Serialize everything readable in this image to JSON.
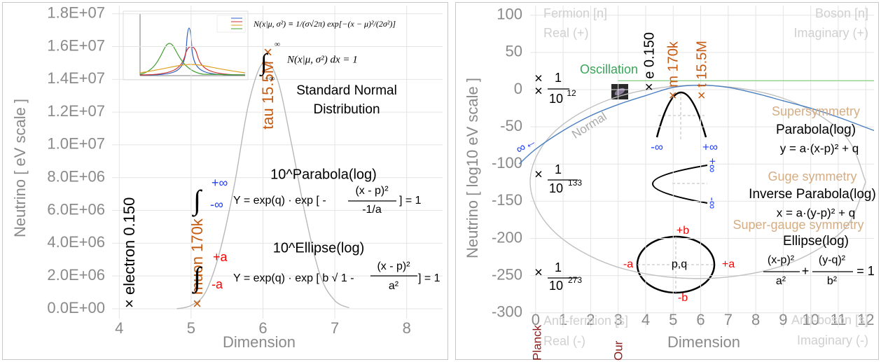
{
  "chart_data": [
    {
      "type": "line",
      "x_label": "Dimension",
      "y_label": "Neutrino [ eV scale ]",
      "xlim": [
        3.9,
        8.5
      ],
      "xticks": [
        4,
        5,
        6,
        7,
        8
      ],
      "ylim": [
        -600000,
        18500000
      ],
      "yticks": [
        {
          "value": 0,
          "label": "0.0E+00"
        },
        {
          "value": 2000000,
          "label": "2.0E+06"
        },
        {
          "value": 4000000,
          "label": "4.0E+06"
        },
        {
          "value": 6000000,
          "label": "6.0E+06"
        },
        {
          "value": 8000000,
          "label": "8.0E+06"
        },
        {
          "value": 10000000,
          "label": "1.0E+07"
        },
        {
          "value": 12000000,
          "label": "1.2E+07"
        },
        {
          "value": 14000000,
          "label": "1.4E+07"
        },
        {
          "value": 16000000,
          "label": "1.6E+07"
        },
        {
          "value": 18000000,
          "label": "1.8E+07"
        }
      ],
      "grid": true,
      "series": [
        {
          "color": "#b8b8b8",
          "x": [
            4.8,
            5.0,
            5.2,
            5.4,
            5.6,
            5.8,
            6.0,
            6.2,
            6.4,
            6.6,
            6.8,
            7.0,
            7.2
          ],
          "values": [
            0,
            200000,
            1000000,
            3500000,
            7500000,
            12500000,
            15000000,
            14000000,
            10000000,
            5500000,
            2000000,
            500000,
            50000
          ]
        }
      ],
      "annotations": {
        "electron": "× electron 0.150",
        "muon": "× muon 170k",
        "tau": "tau 15.5M ×",
        "pdf": "N(x|μ, σ²) ≡ 1/(σ√2π) exp[−(x − μ)²/(2σ²)]",
        "int1_sign": "∫",
        "int1_upper": "∞",
        "int1_lower": "−∞",
        "int1_body": "N(x|μ, σ²) dx = 1",
        "sn1": "Standard Normal",
        "sn2": "Distribution",
        "par_title": "10^Parabola(log)",
        "par_sign": "∫",
        "par_upper": "+∞",
        "par_lower": "-∞",
        "par_lhs": "Y = exp(q) · exp [ -",
        "par_num": "(x - p)²",
        "par_den": "-1/a",
        "par_tail": "] = 1",
        "ell_title": "10^Ellipse(log)",
        "ell_sign": "∫",
        "ell_upper": "+a",
        "ell_lower": "-a",
        "ell_lhs": "Y = exp(q) · exp [ b √ 1 -",
        "ell_num": "(x - p)²",
        "ell_den": "a²",
        "ell_tail": "] = 1"
      }
    },
    {
      "type": "line",
      "x_label": "Dimension",
      "y_label": "Neutrino [ log10 eV scale ]",
      "xlim": [
        -0.2,
        12.3
      ],
      "xticks": [
        0,
        1,
        2,
        3,
        4,
        5,
        6,
        7,
        8,
        9,
        10,
        11,
        12
      ],
      "ylim": [
        -320,
        113
      ],
      "yticks": [
        100,
        50,
        0,
        -50,
        -100,
        -150,
        -200,
        -250,
        -300
      ],
      "grid": true,
      "series": [
        {
          "color": "#c0c0c0",
          "x": [
            12.0,
            11.18,
            8.95,
            5.9,
            2.85,
            0.62,
            -0.2,
            0.62,
            2.85,
            5.9,
            8.95,
            11.18,
            12.0
          ],
          "values": [
            -124,
            -59,
            -11,
            6,
            -11,
            -59,
            -124,
            -189,
            -237,
            -254,
            -237,
            -189,
            -124
          ]
        },
        {
          "color": "#8fcf8f",
          "x": [
            3.0,
            12.3
          ],
          "values": [
            12,
            12
          ]
        },
        {
          "color": "#4a7fc1",
          "x": [
            -0.6,
            0,
            1,
            2,
            3,
            4,
            5,
            6,
            7,
            8,
            9,
            10,
            11,
            12.3
          ],
          "values": [
            -100,
            -80,
            -55,
            -35,
            -20,
            -8,
            3,
            6,
            3,
            -5,
            -15,
            -25,
            -37,
            -55
          ]
        }
      ],
      "annotations": {
        "fermion": "Fermion [n]",
        "real_pos": "Real (+)",
        "boson": "Boson [n]",
        "imag_pos": "Imaginary (+)",
        "antifermion": "Anti-fermion [s]",
        "real_neg": "Real (-)",
        "antiboson": "Anti-boson [s]",
        "imag_neg": "Imaginary (-)",
        "oscillation": "Oscillation",
        "normal": "Normal",
        "inf_left": "∞←",
        "e": "× e 0.150",
        "m": "× m 170k",
        "t": "× t 15.5M",
        "mark1": "×",
        "mark2": "×",
        "f1_num": "1",
        "f1_den": "10",
        "f1_exp": "12",
        "mark3": "×",
        "f2_num": "1",
        "f2_den": "10",
        "f2_exp": "133",
        "mark4": "×",
        "f3_num": "1",
        "f3_den": "10",
        "f3_exp": "273",
        "susy": "Supersymmetry",
        "par_title": "Parabola(log)",
        "par_eq": "y = a·(x-p)² + q",
        "par_minus": "-∞",
        "par_plus": "+∞",
        "guge": "Guge symmetry",
        "inv_title": "Inverse Parabola(log)",
        "inv_eq": "x = a·(y-p)² + q",
        "inv_plus": "+∞",
        "inv_minus": "-∞",
        "sgs": "Super-gauge symmetry",
        "ell_title": "Ellipse(log)",
        "ell_n1": "(x-p)²",
        "ell_d1": "a²",
        "ell_plus": "+",
        "ell_n2": "(y-q)²",
        "ell_d2": "b²",
        "ell_eq": "= 1",
        "pb": "+b",
        "mb": "-b",
        "ma": "-a",
        "pa": "+a",
        "pq": "p,q",
        "planck": "Planck",
        "our": "Our"
      }
    }
  ]
}
